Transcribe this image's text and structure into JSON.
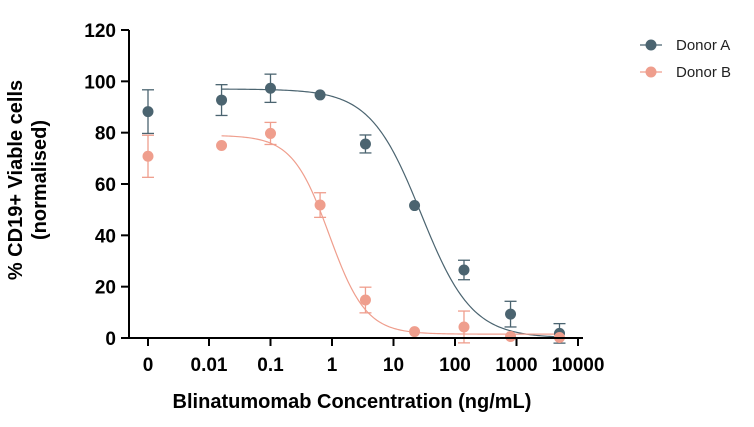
{
  "chart_data": {
    "type": "scatter",
    "title": "",
    "xlabel": "Blinatumomab Concentration (ng/mL)",
    "ylabel_lines": [
      "% CD19+ Viable cells",
      "(normalised)"
    ],
    "x_scale": "log",
    "x_ticks": [
      {
        "label": "0",
        "value": 0
      },
      {
        "label": "0.01",
        "value": 0.01
      },
      {
        "label": "0.1",
        "value": 0.1
      },
      {
        "label": "1",
        "value": 1
      },
      {
        "label": "10",
        "value": 10
      },
      {
        "label": "100",
        "value": 100
      },
      {
        "label": "1000",
        "value": 1000
      },
      {
        "label": "10000",
        "value": 10000
      }
    ],
    "ylim": [
      0,
      120
    ],
    "y_ticks": [
      0,
      20,
      40,
      60,
      80,
      100,
      120
    ],
    "legend_position": "top-right",
    "series": [
      {
        "name": "Donor A",
        "color": "#4b6470",
        "x": [
          0,
          0.016,
          0.1,
          0.64,
          3.5,
          22,
          140,
          800,
          5000
        ],
        "y": [
          88.2,
          92.7,
          97.3,
          94.7,
          75.6,
          51.6,
          26.5,
          9.3,
          1.8
        ],
        "error": [
          8.5,
          6.0,
          5.5,
          0,
          3.5,
          0,
          3.8,
          5.0,
          3.8
        ],
        "fit": {
          "bottom": 0,
          "top": 97,
          "ec50": 28,
          "hill": 1.05
        }
      },
      {
        "name": "Donor B",
        "color": "#ef9e8d",
        "x": [
          0,
          0.016,
          0.1,
          0.64,
          3.5,
          22,
          140,
          800,
          5000
        ],
        "y": [
          70.8,
          75.0,
          79.7,
          51.8,
          14.8,
          2.5,
          4.3,
          0.6,
          0.2
        ],
        "error": [
          8.2,
          0,
          4.3,
          4.8,
          5.0,
          0,
          6.2,
          0,
          0
        ],
        "fit": {
          "bottom": 1.5,
          "top": 79,
          "ec50": 0.9,
          "hill": 1.45
        }
      }
    ]
  }
}
